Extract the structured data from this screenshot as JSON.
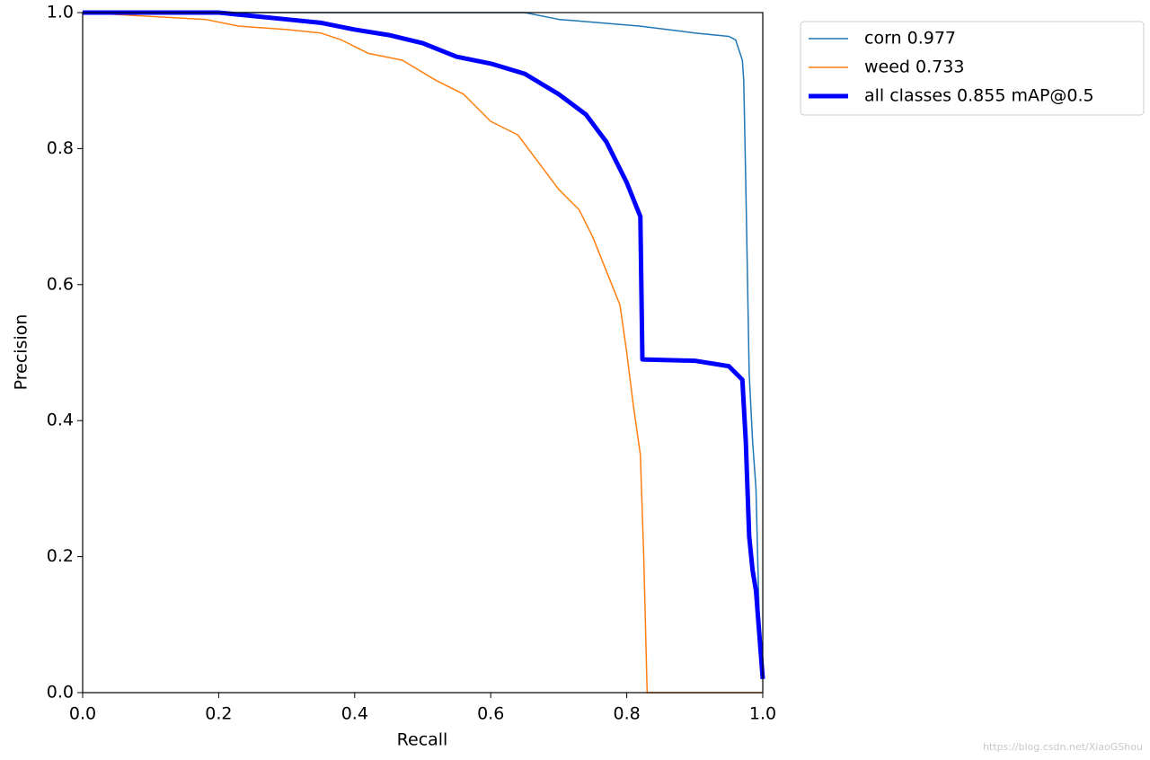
{
  "chart_data": {
    "type": "line",
    "xlabel": "Recall",
    "ylabel": "Precision",
    "xlim": [
      0,
      1
    ],
    "ylim": [
      0,
      1
    ],
    "xticks": [
      {
        "value": 0,
        "label": "0.0"
      },
      0.2,
      0.4,
      0.6,
      0.8,
      {
        "value": 1,
        "label": "1.0"
      }
    ],
    "yticks": [
      {
        "value": 0,
        "label": "0.0"
      },
      0.2,
      0.4,
      0.6,
      0.8,
      {
        "value": 1,
        "label": "1.0"
      }
    ],
    "series": [
      {
        "name": "corn 0.977",
        "color": "#1f77b4",
        "linewidth": 1.5,
        "x": [
          0,
          0.65,
          0.7,
          0.82,
          0.9,
          0.95,
          0.96,
          0.97,
          0.972,
          0.975,
          0.98,
          0.985,
          0.99,
          0.995,
          1.0
        ],
        "values": [
          1.0,
          1.0,
          0.99,
          0.98,
          0.97,
          0.965,
          0.96,
          0.93,
          0.9,
          0.75,
          0.47,
          0.37,
          0.3,
          0.1,
          0.02
        ]
      },
      {
        "name": "weed 0.733",
        "color": "#ff7f0e",
        "linewidth": 1.5,
        "x": [
          0,
          0.18,
          0.23,
          0.3,
          0.35,
          0.38,
          0.42,
          0.47,
          0.52,
          0.56,
          0.58,
          0.6,
          0.64,
          0.67,
          0.7,
          0.73,
          0.75,
          0.77,
          0.79,
          0.8,
          0.81,
          0.82,
          0.825,
          0.83,
          1.0
        ],
        "values": [
          1.0,
          0.99,
          0.98,
          0.975,
          0.97,
          0.96,
          0.94,
          0.93,
          0.9,
          0.88,
          0.86,
          0.84,
          0.82,
          0.78,
          0.74,
          0.71,
          0.67,
          0.62,
          0.57,
          0.5,
          0.42,
          0.35,
          0.2,
          0.0,
          0.0
        ]
      },
      {
        "name": "all classes 0.855 mAP@0.5",
        "color": "#0000ff",
        "linewidth": 5,
        "x": [
          0,
          0.2,
          0.3,
          0.35,
          0.4,
          0.45,
          0.5,
          0.55,
          0.6,
          0.65,
          0.7,
          0.74,
          0.77,
          0.8,
          0.82,
          0.823,
          0.9,
          0.95,
          0.97,
          0.975,
          0.98,
          0.985,
          0.99,
          1.0
        ],
        "values": [
          1.0,
          1.0,
          0.99,
          0.985,
          0.975,
          0.967,
          0.955,
          0.935,
          0.925,
          0.91,
          0.88,
          0.85,
          0.81,
          0.75,
          0.7,
          0.49,
          0.488,
          0.48,
          0.46,
          0.37,
          0.23,
          0.18,
          0.15,
          0.02
        ]
      }
    ],
    "watermark": "https://blog.csdn.net/XiaoGShou"
  }
}
